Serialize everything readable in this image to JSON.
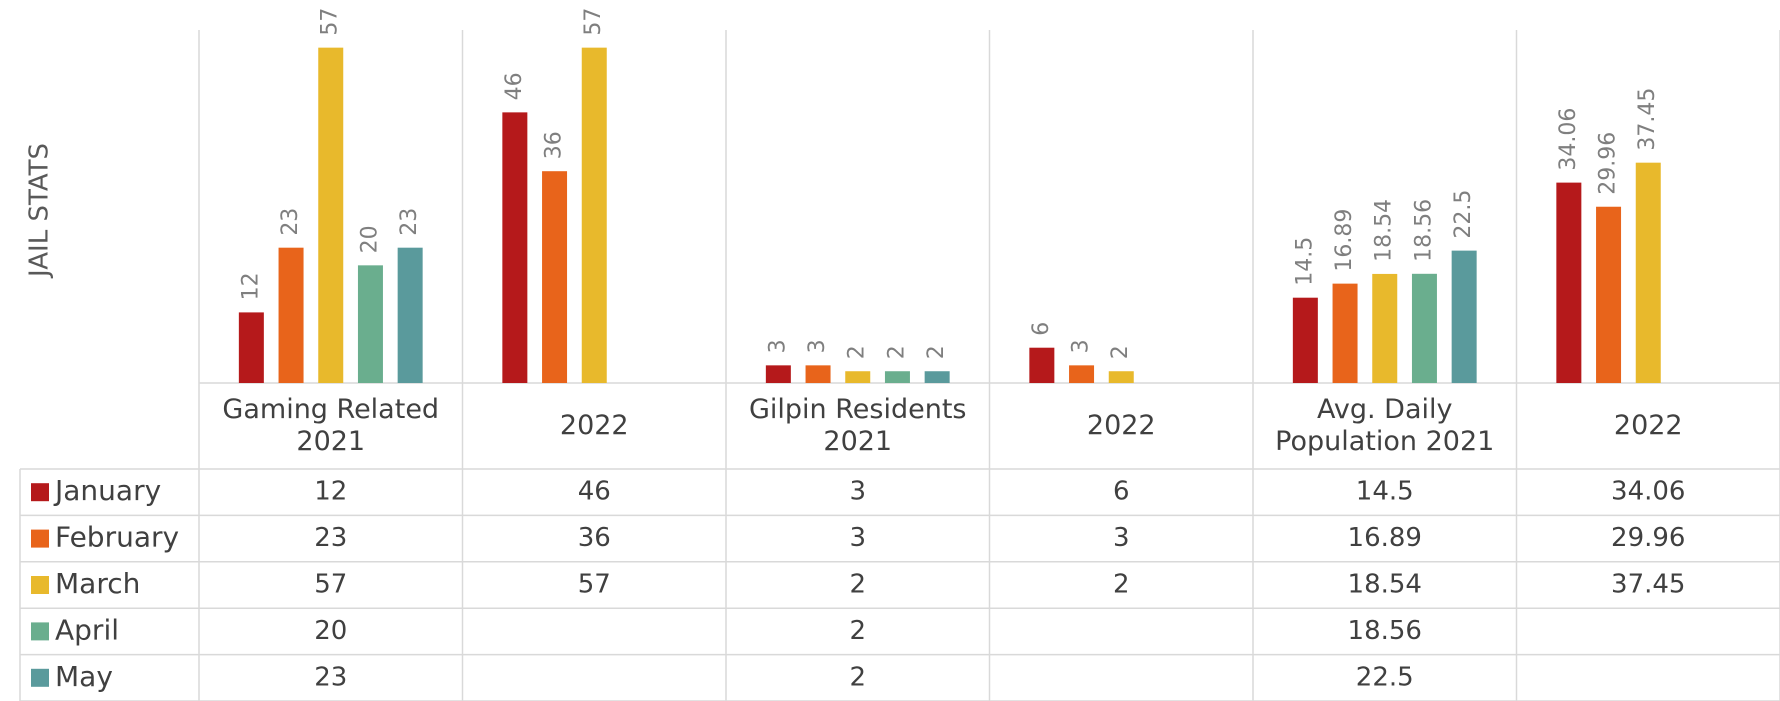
{
  "chart_data": {
    "type": "bar",
    "y_axis_label": "JAIL STATS",
    "categories": [
      "Gaming Related 2021",
      "2022",
      "Gilpin Residents 2021",
      "2022",
      "Avg. Daily Population 2021",
      "2022"
    ],
    "series": [
      {
        "name": "January",
        "color": "#b5191b",
        "values": [
          12,
          46,
          3,
          6,
          14.5,
          34.06
        ]
      },
      {
        "name": "February",
        "color": "#e8641b",
        "values": [
          23,
          36,
          3,
          3,
          16.89,
          29.96
        ]
      },
      {
        "name": "March",
        "color": "#e8b92c",
        "values": [
          57,
          57,
          2,
          2,
          18.54,
          37.45
        ]
      },
      {
        "name": "April",
        "color": "#6aae8e",
        "values": [
          20,
          null,
          2,
          null,
          18.56,
          null
        ]
      },
      {
        "name": "May",
        "color": "#5a9a9c",
        "values": [
          23,
          null,
          2,
          null,
          22.5,
          null
        ]
      }
    ],
    "ylim": [
      0,
      60
    ],
    "data_table": true
  }
}
